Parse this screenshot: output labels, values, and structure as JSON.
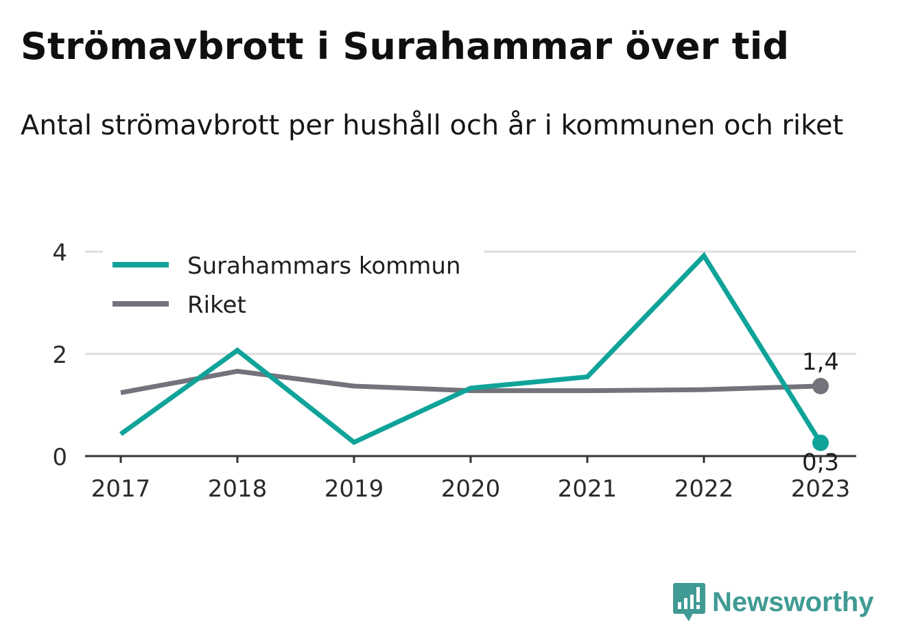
{
  "title": "Strömavbrott i Surahammar över tid",
  "subtitle": "Antal strömavbrott per hushåll och år i kommunen och riket",
  "brand": {
    "name": "Newsworthy",
    "icon": "bar-chart-speech-bubble-icon"
  },
  "colors": {
    "kommun": "#10a399",
    "riket": "#74737b",
    "axis": "#333333",
    "grid": "#dddddd",
    "text": "#222222"
  },
  "chart_data": {
    "type": "line",
    "x": [
      "2017",
      "2018",
      "2019",
      "2020",
      "2021",
      "2022",
      "2023"
    ],
    "ylim": [
      0,
      4
    ],
    "yticks": [
      0,
      2,
      4
    ],
    "grid": true,
    "legend": "top-left",
    "series": [
      {
        "name": "Surahammars kommun",
        "values": [
          0.43,
          2.07,
          0.27,
          1.33,
          1.55,
          3.92,
          0.26
        ],
        "end_label": "0,3"
      },
      {
        "name": "Riket",
        "values": [
          1.24,
          1.66,
          1.37,
          1.28,
          1.28,
          1.3,
          1.37
        ],
        "end_label": "1,4"
      }
    ]
  }
}
